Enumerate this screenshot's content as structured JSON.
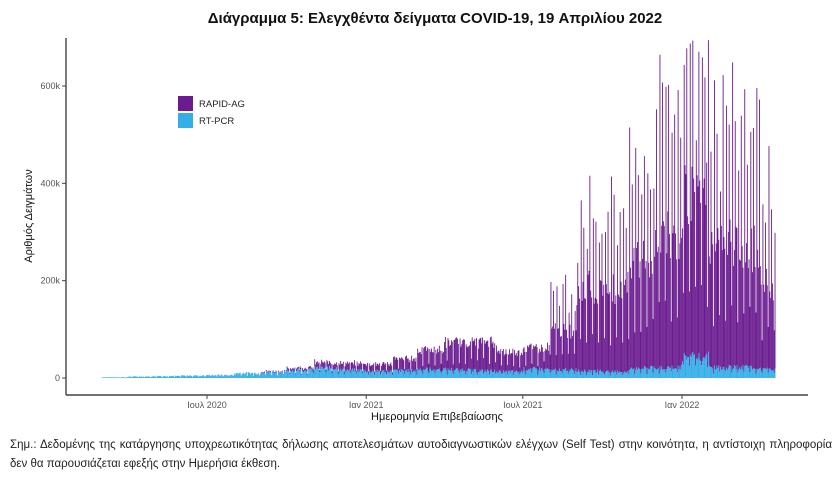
{
  "chart_data": {
    "type": "bar",
    "stacked": true,
    "title": "Διάγραμμα 5: Ελεγχθέντα δείγματα COVID-19, 19 Απριλίου 2022",
    "xlabel": "Ημερομηνία Επιβεβαίωσης",
    "ylabel": "Αριθμός Δειγμάτων",
    "ylim": [
      0,
      680000
    ],
    "yticks": [
      0,
      200000,
      400000,
      600000
    ],
    "ytick_labels": [
      "0",
      "200k",
      "400k",
      "600k"
    ],
    "xrange": [
      "2020-02-26",
      "2022-04-30"
    ],
    "xticks": [
      "2020-07-01",
      "2021-01-01",
      "2021-07-01",
      "2022-01-01"
    ],
    "xtick_labels": [
      "Ιουλ 2020",
      "Ιαν 2021",
      "Ιουλ 2021",
      "Ιαν 2022"
    ],
    "grid": false,
    "legend": {
      "position": "top-left",
      "entries": [
        {
          "name": "RAPID-AG",
          "color": "#6a1b8f"
        },
        {
          "name": "RT-PCR",
          "color": "#33aee8"
        }
      ]
    },
    "series_description": "Daily sample counts from ~Mar 2020 to ~Apr 2022; values approximated from the figure (monthly weekday-level envelope, with weekly peaks)",
    "series": [
      {
        "name": "RT-PCR",
        "color": "#33aee8",
        "monthly_typical": {
          "2020-03": 1500,
          "2020-04": 3000,
          "2020-05": 4000,
          "2020-06": 5000,
          "2020-07": 6000,
          "2020-08": 10000,
          "2020-09": 12000,
          "2020-10": 16000,
          "2020-11": 20000,
          "2020-12": 16000,
          "2021-01": 14000,
          "2021-02": 15000,
          "2021-03": 18000,
          "2021-04": 17000,
          "2021-05": 15000,
          "2021-06": 13000,
          "2021-07": 18000,
          "2021-08": 17000,
          "2021-09": 14000,
          "2021-10": 13000,
          "2021-11": 20000,
          "2021-12": 22000,
          "2022-01": 45000,
          "2022-02": 22000,
          "2022-03": 22000,
          "2022-04": 18000
        }
      },
      {
        "name": "RAPID-AG",
        "color": "#6a1b8f",
        "monthly_typical": {
          "2020-03": 0,
          "2020-04": 0,
          "2020-05": 0,
          "2020-06": 0,
          "2020-07": 0,
          "2020-08": 0,
          "2020-09": 2000,
          "2020-10": 5000,
          "2020-11": 12000,
          "2020-12": 14000,
          "2021-01": 15000,
          "2021-02": 25000,
          "2021-03": 40000,
          "2021-04": 55000,
          "2021-05": 60000,
          "2021-06": 40000,
          "2021-07": 45000,
          "2021-08": 80000,
          "2021-09": 170000,
          "2021-10": 170000,
          "2021-11": 220000,
          "2021-12": 280000,
          "2022-01": 330000,
          "2022-02": 260000,
          "2022-03": 250000,
          "2022-04": 180000
        },
        "weekly_peak_max": 640000
      }
    ]
  },
  "legend": {
    "items": [
      {
        "label": "RAPID-AG",
        "color": "#6a1b8f"
      },
      {
        "label": "RT-PCR",
        "color": "#33aee8"
      }
    ]
  },
  "note": "Σημ.: Δεδομένης της κατάργησης υποχρεωτικότητας δήλωσης αποτελεσμάτων αυτοδιαγνωστικών ελέγχων (Self Test) στην κοινότητα, η αντίστοιχη πληροφορία δεν θα παρουσιάζεται εφεξής στην Ημερήσια έκθεση."
}
